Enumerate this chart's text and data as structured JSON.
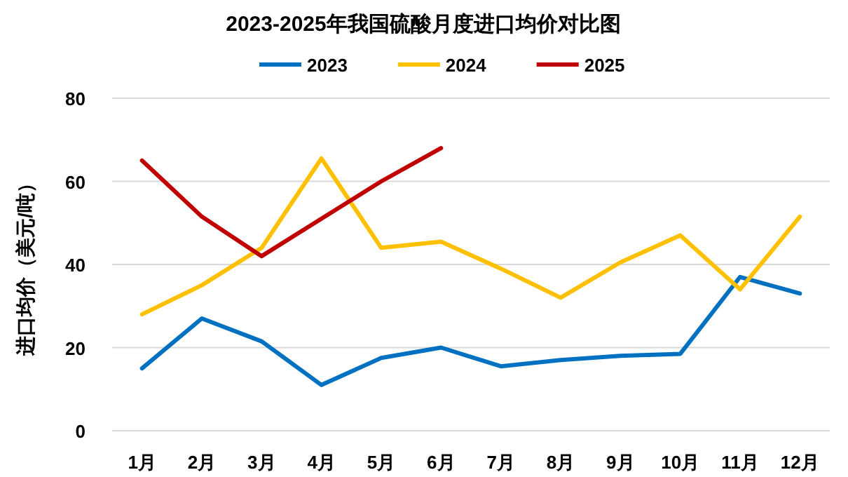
{
  "chart_data": {
    "type": "line",
    "title": "2023-2025年我国硫酸月度进口均价对比图",
    "ylabel": "进口均价（美元/吨）",
    "categories": [
      "1月",
      "2月",
      "3月",
      "4月",
      "5月",
      "6月",
      "7月",
      "8月",
      "9月",
      "10月",
      "11月",
      "12月"
    ],
    "series": [
      {
        "name": "2023",
        "color": "#0070c0",
        "values": [
          15,
          27,
          21.5,
          11,
          17.5,
          20,
          15.5,
          17,
          18,
          18.5,
          37,
          33
        ]
      },
      {
        "name": "2024",
        "color": "#ffc000",
        "values": [
          28,
          35,
          44,
          65.5,
          44,
          45.5,
          39,
          32,
          40.5,
          47,
          34,
          51.5
        ]
      },
      {
        "name": "2025",
        "color": "#c00000",
        "values": [
          65,
          51.5,
          42,
          51,
          60,
          68,
          null,
          null,
          null,
          null,
          null,
          null
        ]
      }
    ],
    "ylim": [
      0,
      80
    ],
    "yticks": [
      0,
      20,
      40,
      60,
      80
    ],
    "grid": "y",
    "legend": "top",
    "marker": "none",
    "line_style": "solid"
  }
}
